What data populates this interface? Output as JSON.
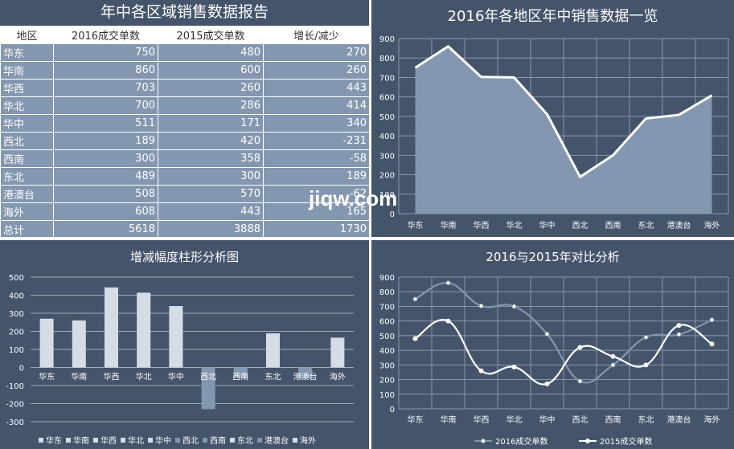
{
  "report": {
    "title": "年中各区域销售数据报告",
    "headers": [
      "地区",
      "2016成交单数",
      "2015成交单数",
      "增长/减少"
    ],
    "rows": [
      [
        "华东",
        "750",
        "480",
        "270"
      ],
      [
        "华南",
        "860",
        "600",
        "260"
      ],
      [
        "华西",
        "703",
        "260",
        "443"
      ],
      [
        "华北",
        "700",
        "286",
        "414"
      ],
      [
        "华中",
        "511",
        "171",
        "340"
      ],
      [
        "西北",
        "189",
        "420",
        "-231"
      ],
      [
        "西南",
        "300",
        "358",
        "-58"
      ],
      [
        "东北",
        "489",
        "300",
        "189"
      ],
      [
        "港澳台",
        "508",
        "570",
        "-62"
      ],
      [
        "海外",
        "608",
        "443",
        "165"
      ],
      [
        "总计",
        "5618",
        "3888",
        "1730"
      ]
    ]
  },
  "watermark": "jiqw.com",
  "chart_data": [
    {
      "id": "area",
      "type": "area",
      "title": "2016年各地区年中销售数据一览",
      "categories": [
        "华东",
        "华南",
        "华西",
        "华北",
        "华中",
        "西北",
        "西南",
        "东北",
        "港澳台",
        "海外"
      ],
      "values": [
        750,
        860,
        703,
        700,
        511,
        189,
        300,
        489,
        508,
        608
      ],
      "ylim": [
        0,
        900
      ],
      "yticks": [
        0,
        100,
        200,
        300,
        400,
        500,
        600,
        700,
        800,
        900
      ],
      "grid": true,
      "colors": {
        "fill": "#8497b0",
        "line": "#ffffff",
        "grid": "#8a97ab"
      }
    },
    {
      "id": "bar",
      "type": "bar",
      "title": "增减幅度柱形分析图",
      "categories": [
        "华东",
        "华南",
        "华西",
        "华北",
        "华中",
        "西北",
        "西南",
        "东北",
        "港澳台",
        "海外"
      ],
      "values": [
        270,
        260,
        443,
        414,
        340,
        -231,
        -58,
        189,
        -62,
        165
      ],
      "ylim": [
        -300,
        500
      ],
      "yticks": [
        500,
        400,
        300,
        200,
        100,
        0,
        -100,
        -200,
        -300
      ],
      "grid": true,
      "legend_position": "bottom",
      "legend": [
        "华东",
        "华南",
        "华西",
        "华北",
        "华中",
        "西北",
        "西南",
        "东北",
        "港澳台",
        "海外"
      ],
      "colors": {
        "positive": "#d6dce5",
        "negative": "#8497b0",
        "grid": "#ffffff"
      }
    },
    {
      "id": "line",
      "type": "line",
      "title": "2016与2015年对比分析",
      "categories": [
        "华东",
        "华南",
        "华西",
        "华北",
        "华中",
        "西北",
        "西南",
        "东北",
        "港澳台",
        "海外"
      ],
      "series": [
        {
          "name": "2016成交单数",
          "values": [
            750,
            860,
            703,
            700,
            511,
            189,
            300,
            489,
            508,
            608
          ],
          "color": "#8497b0"
        },
        {
          "name": "2015成交单数",
          "values": [
            480,
            600,
            260,
            286,
            171,
            420,
            358,
            300,
            570,
            443
          ],
          "color": "#ffffff"
        }
      ],
      "ylim": [
        0,
        900
      ],
      "yticks": [
        0,
        100,
        200,
        300,
        400,
        500,
        600,
        700,
        800,
        900
      ],
      "grid": true,
      "legend_position": "bottom"
    }
  ]
}
